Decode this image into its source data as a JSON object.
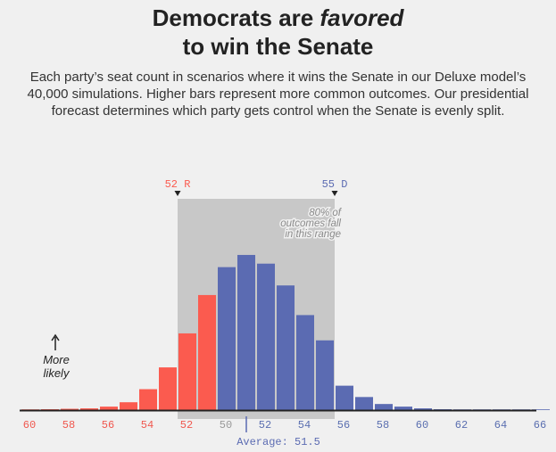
{
  "header": {
    "title_part1": "Democrats are ",
    "title_emphasis": "favored",
    "title_part2": "to win the Senate",
    "subtitle": "Each party’s seat count in scenarios where it wins the Senate in our Deluxe model’s 40,000 simulations. Higher bars represent more common outcomes. Our presidential forecast determines which party gets control when the Senate is evenly split."
  },
  "chart_data": {
    "type": "bar",
    "x_tick_labels": [
      "60",
      "58",
      "56",
      "54",
      "52",
      "50",
      "52",
      "54",
      "56",
      "58",
      "60",
      "62",
      "64",
      "66"
    ],
    "x_tick_colors": [
      "#f0584f",
      "#f0584f",
      "#f0584f",
      "#f0584f",
      "#f0584f",
      "#999999",
      "#5b6fb0",
      "#5b6fb0",
      "#5b6fb0",
      "#5b6fb0",
      "#5b6fb0",
      "#5b6fb0",
      "#5b6fb0",
      "#5b6fb0"
    ],
    "republican_color": "#fb5b4f",
    "democrat_color": "#5b6bb2",
    "range_shade_color": "#c8c8c8",
    "y_max": 180,
    "series": [
      {
        "party": "R",
        "bars": [
          {
            "seats": 60,
            "value": 0.5
          },
          {
            "seats": 59,
            "value": 1
          },
          {
            "seats": 58,
            "value": 1.5
          },
          {
            "seats": 57,
            "value": 2
          },
          {
            "seats": 56,
            "value": 4
          },
          {
            "seats": 55,
            "value": 9
          },
          {
            "seats": 54,
            "value": 24
          },
          {
            "seats": 53,
            "value": 49
          },
          {
            "seats": 52,
            "value": 88
          },
          {
            "seats": 51,
            "value": 132
          },
          {
            "seats": 50,
            "value": 21
          }
        ]
      },
      {
        "party": "D",
        "bars": [
          {
            "seats": 50,
            "value": 164
          },
          {
            "seats": 51,
            "value": 178
          },
          {
            "seats": 52,
            "value": 168
          },
          {
            "seats": 53,
            "value": 143
          },
          {
            "seats": 54,
            "value": 109
          },
          {
            "seats": 55,
            "value": 80
          },
          {
            "seats": 56,
            "value": 28
          },
          {
            "seats": 57,
            "value": 15
          },
          {
            "seats": 58,
            "value": 7
          },
          {
            "seats": 59,
            "value": 4
          },
          {
            "seats": 60,
            "value": 2
          },
          {
            "seats": 61,
            "value": 1
          },
          {
            "seats": 62,
            "value": 0.6
          },
          {
            "seats": 63,
            "value": 0.4
          },
          {
            "seats": 64,
            "value": 0.3
          },
          {
            "seats": 65,
            "value": 0.2
          },
          {
            "seats": 66,
            "value": 0.1
          }
        ]
      }
    ],
    "range": {
      "low_label": "52 R",
      "high_label": "55 D",
      "note_lines": [
        "80% of",
        "outcomes fall",
        "in this range"
      ]
    },
    "average": {
      "label": "Average: 51.5",
      "party": "D",
      "seats": 51.5
    },
    "y_hint": {
      "lines": [
        "More",
        "likely"
      ]
    }
  }
}
